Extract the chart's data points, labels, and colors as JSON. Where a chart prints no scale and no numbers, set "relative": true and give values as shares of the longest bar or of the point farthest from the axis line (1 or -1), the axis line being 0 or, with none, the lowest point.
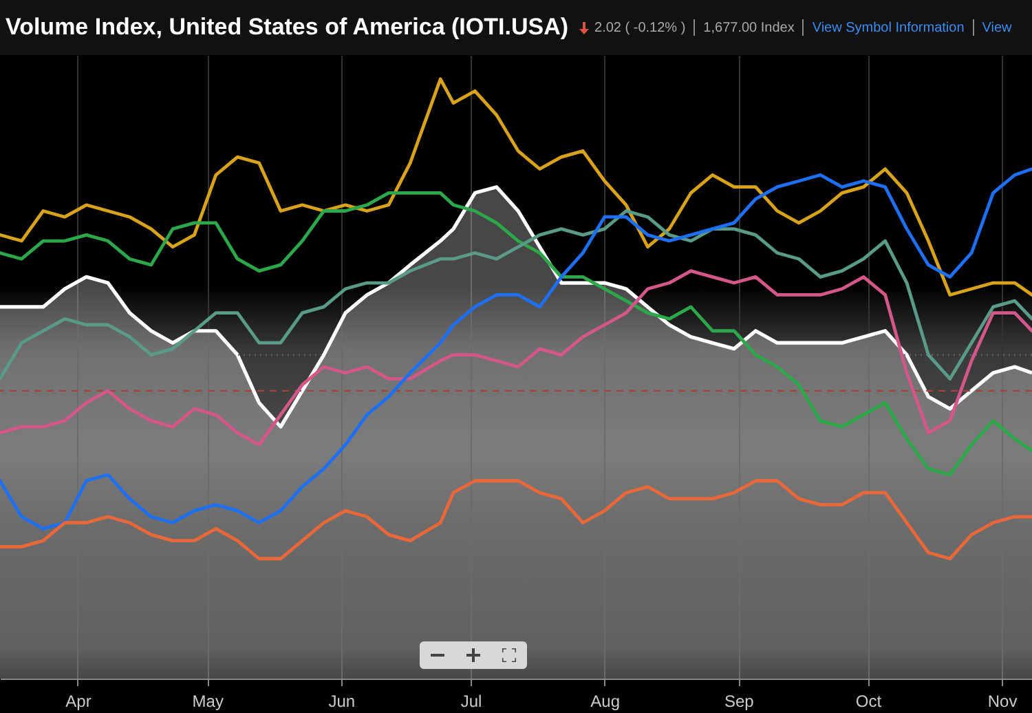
{
  "chart_data": {
    "type": "line",
    "title": "Volume Index, United States of America (IOTI.USA)",
    "annotations": [
      "2.02 ( -0.12% )",
      "1,677.00 Index",
      "View Symbol Information",
      "View"
    ],
    "relative": true,
    "grid": "x",
    "xlim": [
      "--03-14",
      "--11-08"
    ],
    "xticks": [
      {
        "value": "--04-01",
        "label": "Apr"
      },
      {
        "value": "--05-01",
        "label": "May"
      },
      {
        "value": "--06-01",
        "label": "Jun"
      },
      {
        "value": "--07-01",
        "label": "Jul"
      },
      {
        "value": "--08-01",
        "label": "Aug"
      },
      {
        "value": "--09-01",
        "label": "Sep"
      },
      {
        "value": "--10-01",
        "label": "Oct"
      },
      {
        "value": "--11-01",
        "label": "Nov"
      }
    ],
    "x": [
      "--03-14",
      "--03-19",
      "--03-24",
      "--03-29",
      "--04-03",
      "--04-08",
      "--04-13",
      "--04-18",
      "--04-23",
      "--04-28",
      "--05-03",
      "--05-08",
      "--05-13",
      "--05-18",
      "--05-23",
      "--05-28",
      "--06-02",
      "--06-07",
      "--06-12",
      "--06-17",
      "--06-24",
      "--06-27",
      "--07-02",
      "--07-07",
      "--07-12",
      "--07-17",
      "--07-22",
      "--07-27",
      "--08-01",
      "--08-06",
      "--08-11",
      "--08-16",
      "--08-21",
      "--08-26",
      "--08-31",
      "--09-05",
      "--09-10",
      "--09-15",
      "--09-20",
      "--09-25",
      "--09-30",
      "--10-05",
      "--10-10",
      "--10-15",
      "--10-20",
      "--10-25",
      "--10-30",
      "--11-04",
      "--11-08"
    ],
    "ref_lines": [
      {
        "axis": "y",
        "value": 0.48,
        "color": "#a0463a",
        "line_style": "dashed"
      },
      {
        "axis": "y",
        "value": 0.54,
        "color": "#6a6a6a",
        "line_style": "dotted"
      }
    ],
    "series": [
      {
        "type": "area",
        "color": "#ffffff",
        "values": [
          0.62,
          0.62,
          0.62,
          0.65,
          0.67,
          0.66,
          0.61,
          0.58,
          0.56,
          0.58,
          0.58,
          0.54,
          0.46,
          0.42,
          0.48,
          0.54,
          0.61,
          0.64,
          0.66,
          0.69,
          0.73,
          0.75,
          0.81,
          0.82,
          0.78,
          0.72,
          0.66,
          0.66,
          0.66,
          0.65,
          0.62,
          0.59,
          0.57,
          0.56,
          0.55,
          0.58,
          0.56,
          0.56,
          0.56,
          0.56,
          0.57,
          0.58,
          0.54,
          0.47,
          0.45,
          0.48,
          0.51,
          0.52,
          0.51
        ]
      },
      {
        "color": "#d9a21b",
        "values": [
          0.74,
          0.73,
          0.78,
          0.77,
          0.79,
          0.78,
          0.77,
          0.75,
          0.72,
          0.74,
          0.84,
          0.87,
          0.86,
          0.78,
          0.79,
          0.78,
          0.79,
          0.78,
          0.79,
          0.86,
          1,
          0.96,
          0.98,
          0.94,
          0.88,
          0.85,
          0.87,
          0.88,
          0.83,
          0.79,
          0.72,
          0.75,
          0.81,
          0.84,
          0.82,
          0.82,
          0.78,
          0.76,
          0.78,
          0.81,
          0.82,
          0.85,
          0.81,
          0.73,
          0.64,
          0.65,
          0.66,
          0.66,
          0.64
        ]
      },
      {
        "color": "#2ca84a",
        "values": [
          0.71,
          0.7,
          0.73,
          0.73,
          0.74,
          0.73,
          0.7,
          0.69,
          0.75,
          0.76,
          0.76,
          0.7,
          0.68,
          0.69,
          0.73,
          0.78,
          0.78,
          0.79,
          0.81,
          0.81,
          0.81,
          0.79,
          0.78,
          0.76,
          0.73,
          0.71,
          0.67,
          0.67,
          0.65,
          0.63,
          0.61,
          0.6,
          0.62,
          0.58,
          0.58,
          0.54,
          0.52,
          0.49,
          0.43,
          0.42,
          0.44,
          0.46,
          0.4,
          0.35,
          0.34,
          0.39,
          0.43,
          0.4,
          0.38
        ]
      },
      {
        "color": "#5a9a88",
        "values": [
          0.5,
          0.56,
          0.58,
          0.6,
          0.59,
          0.59,
          0.57,
          0.54,
          0.55,
          0.58,
          0.61,
          0.61,
          0.56,
          0.56,
          0.61,
          0.62,
          0.65,
          0.66,
          0.66,
          0.68,
          0.7,
          0.7,
          0.71,
          0.7,
          0.72,
          0.74,
          0.75,
          0.74,
          0.75,
          0.78,
          0.77,
          0.74,
          0.73,
          0.75,
          0.75,
          0.74,
          0.71,
          0.7,
          0.67,
          0.68,
          0.7,
          0.73,
          0.66,
          0.54,
          0.5,
          0.56,
          0.62,
          0.63,
          0.6
        ]
      },
      {
        "color": "#d4578a",
        "values": [
          0.41,
          0.42,
          0.42,
          0.43,
          0.46,
          0.48,
          0.45,
          0.43,
          0.42,
          0.45,
          0.44,
          0.41,
          0.39,
          0.44,
          0.49,
          0.52,
          0.51,
          0.52,
          0.5,
          0.5,
          0.53,
          0.54,
          0.54,
          0.53,
          0.52,
          0.55,
          0.54,
          0.57,
          0.59,
          0.61,
          0.65,
          0.66,
          0.68,
          0.67,
          0.66,
          0.67,
          0.64,
          0.64,
          0.64,
          0.65,
          0.67,
          0.64,
          0.51,
          0.41,
          0.43,
          0.53,
          0.61,
          0.61,
          0.58
        ]
      },
      {
        "color": "#1f6ff2",
        "values": [
          0.33,
          0.27,
          0.25,
          0.26,
          0.33,
          0.34,
          0.3,
          0.27,
          0.26,
          0.28,
          0.29,
          0.28,
          0.26,
          0.28,
          0.32,
          0.35,
          0.39,
          0.44,
          0.47,
          0.51,
          0.56,
          0.59,
          0.62,
          0.64,
          0.64,
          0.62,
          0.67,
          0.71,
          0.77,
          0.77,
          0.74,
          0.73,
          0.74,
          0.75,
          0.76,
          0.8,
          0.82,
          0.83,
          0.84,
          0.82,
          0.83,
          0.82,
          0.75,
          0.69,
          0.67,
          0.71,
          0.81,
          0.84,
          0.85
        ]
      },
      {
        "color": "#e8683a",
        "values": [
          0.22,
          0.22,
          0.23,
          0.26,
          0.26,
          0.27,
          0.26,
          0.24,
          0.23,
          0.23,
          0.25,
          0.23,
          0.2,
          0.2,
          0.23,
          0.26,
          0.28,
          0.27,
          0.24,
          0.23,
          0.26,
          0.31,
          0.33,
          0.33,
          0.33,
          0.31,
          0.3,
          0.26,
          0.28,
          0.31,
          0.32,
          0.3,
          0.3,
          0.3,
          0.31,
          0.33,
          0.33,
          0.3,
          0.29,
          0.29,
          0.31,
          0.31,
          0.26,
          0.21,
          0.2,
          0.24,
          0.26,
          0.27,
          0.27
        ]
      }
    ]
  }
}
